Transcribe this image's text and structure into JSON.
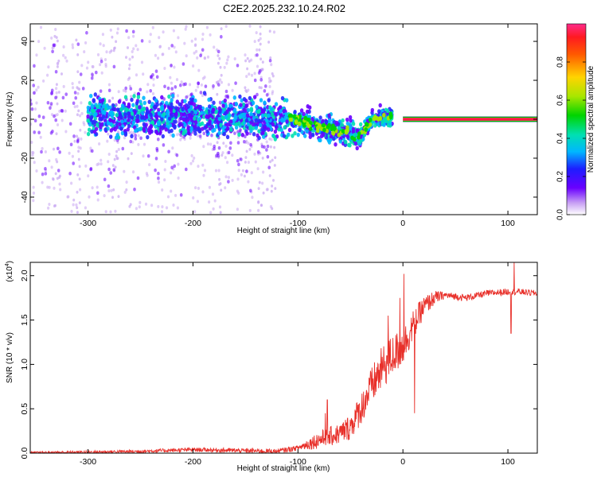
{
  "title": "C2E2.2025.232.10.24.R02",
  "colors": {
    "signal_line": "#e8302a",
    "scatter_main": "#6a00ff",
    "scatter_faint": "#c8a6f2",
    "carrier_band": "#ff1a3c",
    "carrier_edge": "#00c400"
  },
  "chart_data": [
    {
      "type": "scatter",
      "name": "spectrogram",
      "xlabel": "Height of straight line (km)",
      "ylabel": "Frequency (Hz)",
      "xlim": [
        -355,
        128
      ],
      "ylim": [
        -49,
        49
      ],
      "xticks": [
        -300,
        -200,
        -100,
        0,
        100
      ],
      "yticks": [
        -40,
        -20,
        0,
        20,
        40
      ],
      "xtick_labels": [
        "-300",
        "-200",
        "-100",
        "0",
        "100"
      ],
      "ytick_labels": [
        "-40",
        "-20",
        "0",
        "20",
        "40"
      ],
      "carrier": {
        "x_start": 0,
        "x_end": 128,
        "freq": 0,
        "normalized_amplitude": 0.92
      },
      "colorbar": {
        "label": "Normalized spectral amplitude",
        "range": [
          0,
          1
        ],
        "ticks": [
          0.0,
          0.2,
          0.4,
          0.6,
          0.8
        ],
        "tick_labels": [
          "0.0",
          "0.2",
          "0.4",
          "0.6",
          "0.8"
        ]
      }
    },
    {
      "type": "line",
      "name": "snr",
      "xlabel": "Height of straight line (km)",
      "ylabel": "SNR (10 * v/v)",
      "yscale_label": "(x10",
      "yscale_exponent": "4",
      "xlim": [
        -355,
        128
      ],
      "ylim": [
        0,
        2.15
      ],
      "xticks": [
        -300,
        -200,
        -100,
        0,
        100
      ],
      "yticks": [
        0.0,
        0.5,
        1.0,
        1.5,
        2.0
      ],
      "xtick_labels": [
        "-300",
        "-200",
        "-100",
        "0",
        "100"
      ],
      "ytick_labels": [
        "0.0",
        "0.5",
        "1.0",
        "1.5",
        "2.0"
      ],
      "trend": {
        "x": [
          -355,
          -250,
          -200,
          -120,
          -100,
          -80,
          -60,
          -50,
          -40,
          -30,
          -20,
          -10,
          0,
          10,
          20,
          30,
          40,
          60,
          80,
          100,
          110,
          128
        ],
        "y": [
          0.005,
          0.02,
          0.04,
          0.02,
          0.06,
          0.15,
          0.22,
          0.3,
          0.5,
          0.75,
          0.95,
          1.1,
          1.2,
          1.45,
          1.65,
          1.75,
          1.78,
          1.75,
          1.8,
          1.82,
          1.82,
          1.8
        ]
      },
      "noise_amplitude": {
        "x": [
          -355,
          -100,
          -80,
          -60,
          -40,
          -20,
          0,
          20,
          40,
          128
        ],
        "y": [
          0.012,
          0.03,
          0.1,
          0.12,
          0.18,
          0.25,
          0.22,
          0.12,
          0.04,
          0.035
        ]
      },
      "spikes": [
        {
          "x": -74,
          "y": 0.45
        },
        {
          "x": -72,
          "y": 0.6
        },
        {
          "x": -14,
          "y": 1.55
        },
        {
          "x": -3,
          "y": 1.75
        },
        {
          "x": 1,
          "y": 2.02
        },
        {
          "x": 11,
          "y": 0.45
        },
        {
          "x": 103,
          "y": 1.35
        },
        {
          "x": 106,
          "y": 2.15
        }
      ]
    }
  ]
}
